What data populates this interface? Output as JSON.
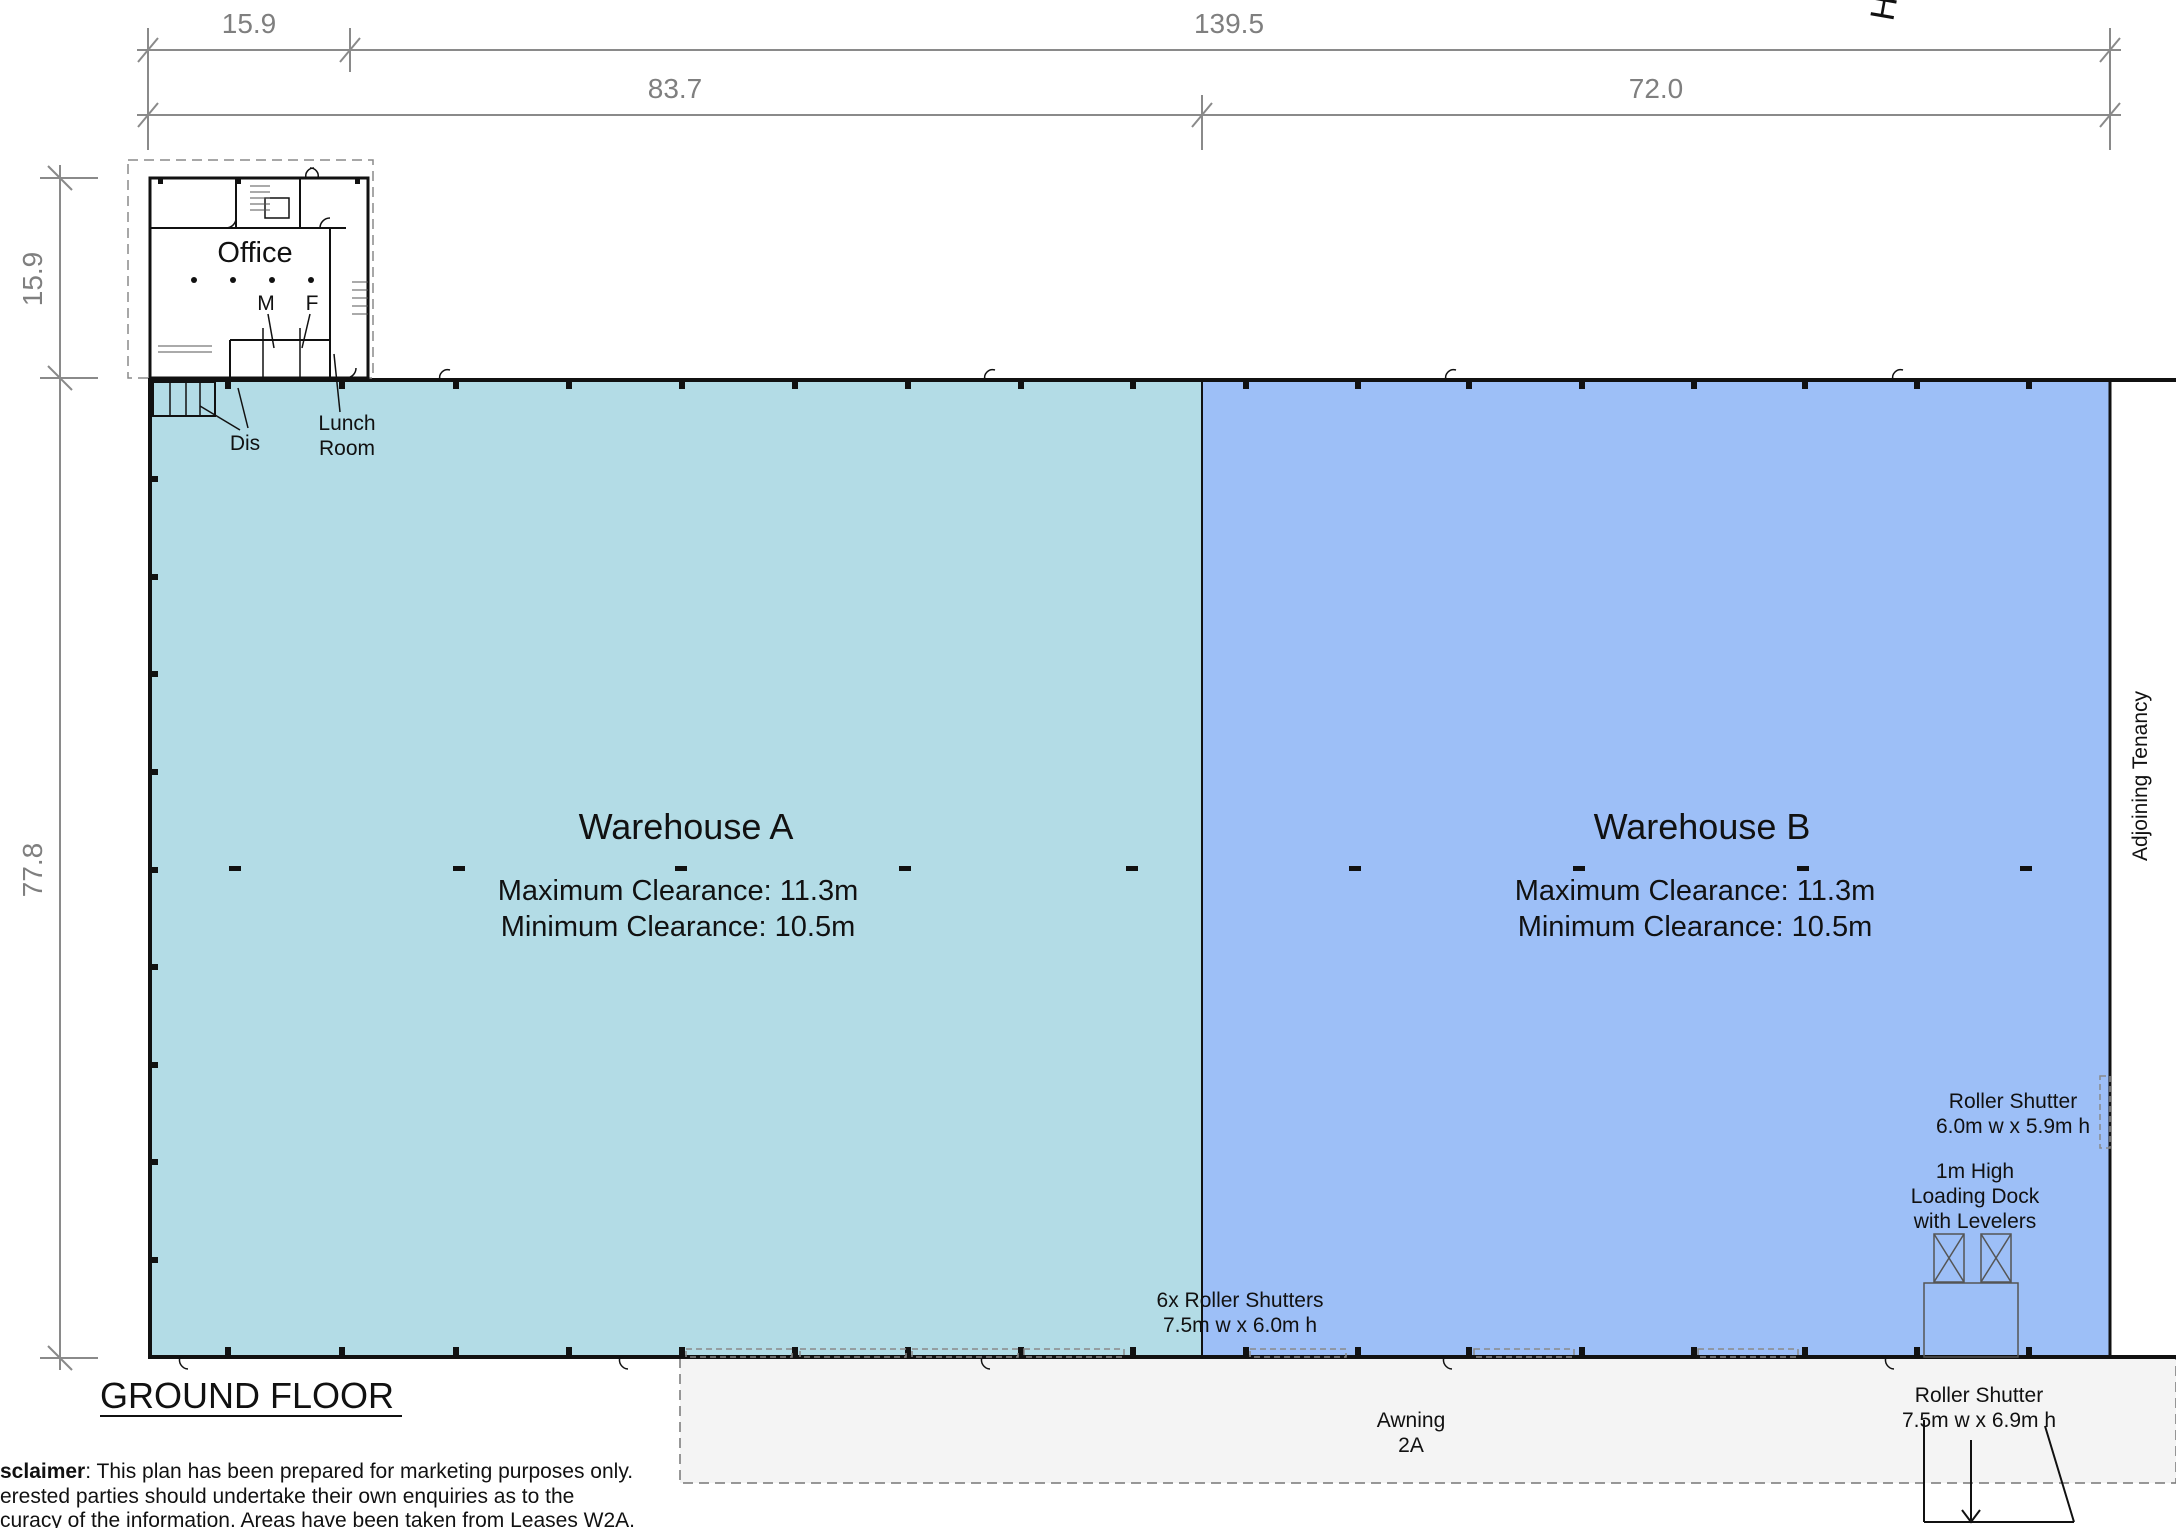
{
  "dimensions": {
    "top_office_width": "15.9",
    "top_overall": "139.5",
    "top_section_a": "83.7",
    "top_section_b": "72.0",
    "left_office_depth": "15.9",
    "left_warehouse_depth": "77.8"
  },
  "corner_fragment": "H",
  "office": {
    "title": "Office",
    "male_wc": "M",
    "female_wc": "F",
    "lunch_room_line1": "Lunch",
    "lunch_room_line2": "Room",
    "disabled_wc": "Dis"
  },
  "warehouse_a": {
    "name": "Warehouse A",
    "max_clearance": "Maximum Clearance: 11.3m",
    "min_clearance": "Minimum Clearance: 10.5m",
    "color": "#b3dce6"
  },
  "warehouse_b": {
    "name": "Warehouse B",
    "max_clearance": "Maximum Clearance: 11.3m",
    "min_clearance": "Minimum Clearance: 10.5m",
    "color": "#9dbff7"
  },
  "adjoining": "Adjoining Tenancy",
  "roller_shutter_side": {
    "line1": "Roller Shutter",
    "line2": "6.0m w x 5.9m h"
  },
  "loading_dock": {
    "line1": "1m High",
    "line2": "Loading Dock",
    "line3": "with Levelers"
  },
  "roller_shutters_front": {
    "line1": "6x Roller Shutters",
    "line2": "7.5m w x 6.0m h"
  },
  "roller_shutter_dock": {
    "line1": "Roller Shutter",
    "line2": "7.5m w x 6.9m h"
  },
  "awning": {
    "line1": "Awning",
    "line2": "2A"
  },
  "floor_title": "GROUND FLOOR",
  "disclaimer": {
    "bold": "sclaimer",
    "line1_rest": ": This plan has been prepared for marketing purposes only.",
    "line2": "erested parties should undertake their own enquiries as to the",
    "line3": "curacy of the information. Areas have been taken from Leases W2A."
  }
}
